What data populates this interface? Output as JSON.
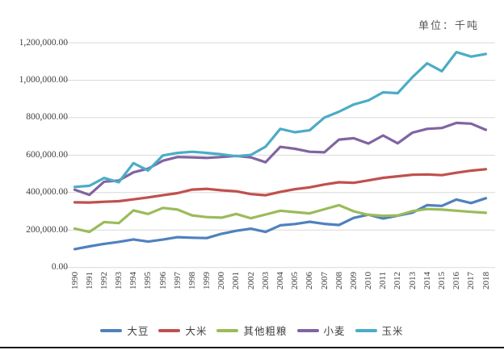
{
  "header": {
    "unit_label": "单位：千吨"
  },
  "chart_data": {
    "type": "line",
    "title": "",
    "xlabel": "",
    "ylabel": "",
    "unit": "千吨",
    "x": [
      "1990",
      "1991",
      "1992",
      "1993",
      "1994",
      "1995",
      "1996",
      "1997",
      "1998",
      "1999",
      "2000",
      "2001",
      "2002",
      "2003",
      "2004",
      "2005",
      "2006",
      "2007",
      "2008",
      "2009",
      "2010",
      "2011",
      "2012",
      "2013",
      "2014",
      "2015",
      "2016",
      "2017",
      "2018"
    ],
    "ylim": [
      0,
      1200000
    ],
    "ytick_step": 200000,
    "ytick_labels": [
      "0.00",
      "200,000.00",
      "400,000.00",
      "600,000.00",
      "800,000.00",
      "1,000,000.00",
      "1,200,000.00"
    ],
    "grid": true,
    "legend_position": "bottom",
    "gridline_color": "#d9d9d9",
    "series": [
      {
        "id": "soybean",
        "name": "大豆",
        "color": "#4F81BD",
        "values": [
          98000,
          113000,
          126000,
          137000,
          150000,
          138000,
          149000,
          162000,
          159000,
          157000,
          180000,
          196000,
          207000,
          190000,
          225000,
          232000,
          244000,
          233000,
          227000,
          265000,
          282000,
          262000,
          277000,
          293000,
          333000,
          329000,
          363000,
          344000,
          370000
        ]
      },
      {
        "id": "rice",
        "name": "大米",
        "color": "#C0504D",
        "values": [
          348000,
          347000,
          351000,
          354000,
          364000,
          374000,
          386000,
          397000,
          416000,
          420000,
          412000,
          407000,
          392000,
          386000,
          404000,
          418000,
          428000,
          443000,
          455000,
          452000,
          465000,
          479000,
          487000,
          495000,
          497000,
          493000,
          506000,
          517000,
          525000
        ]
      },
      {
        "id": "other-coarse-grains",
        "name": "其他粗粮",
        "color": "#9BBB59",
        "values": [
          208000,
          190000,
          243000,
          237000,
          305000,
          286000,
          318000,
          309000,
          278000,
          269000,
          266000,
          286000,
          263000,
          283000,
          303000,
          296000,
          289000,
          311000,
          333000,
          300000,
          281000,
          276000,
          278000,
          301000,
          312000,
          309000,
          303000,
          297000,
          292000
        ]
      },
      {
        "id": "wheat",
        "name": "小麦",
        "color": "#8064A2",
        "values": [
          415000,
          388000,
          458000,
          464000,
          508000,
          528000,
          570000,
          590000,
          588000,
          585000,
          590000,
          596000,
          588000,
          562000,
          644000,
          634000,
          618000,
          615000,
          683000,
          690000,
          662000,
          705000,
          663000,
          720000,
          740000,
          745000,
          772000,
          768000,
          735000
        ]
      },
      {
        "id": "corn",
        "name": "玉米",
        "color": "#4BACC6",
        "values": [
          430000,
          436000,
          478000,
          455000,
          557000,
          518000,
          598000,
          612000,
          618000,
          612000,
          604000,
          594000,
          601000,
          645000,
          740000,
          722000,
          733000,
          800000,
          832000,
          870000,
          892000,
          935000,
          931000,
          1016000,
          1090000,
          1048000,
          1150000,
          1126000,
          1140000
        ]
      }
    ]
  }
}
